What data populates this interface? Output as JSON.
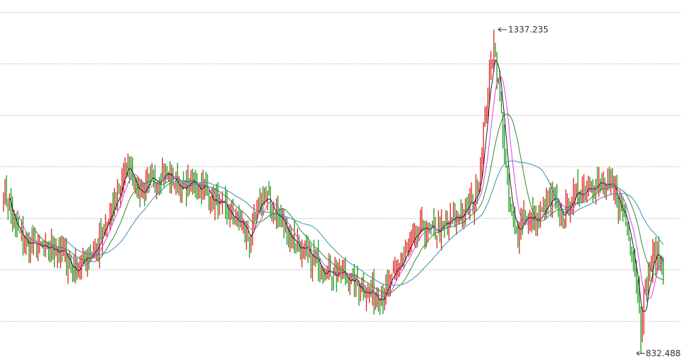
{
  "chart_data": {
    "type": "candlestick",
    "grid": "horizontal dotted",
    "legend": "none",
    "ylim": [
      800,
      1400
    ],
    "annotations": {
      "high": "1337.235",
      "low": "832.488"
    },
    "colors": {
      "up": "#e02020",
      "down": "#1a9a1a",
      "ma_black": "#222222",
      "ma_magenta": "#e040e0",
      "ma_green": "#2e8b2e",
      "ma_blue": "#3a8fb0"
    },
    "anchors": [
      [
        0,
        1095
      ],
      [
        8,
        1025
      ],
      [
        15,
        1005
      ],
      [
        22,
        1000
      ],
      [
        28,
        990
      ],
      [
        33,
        1000
      ],
      [
        38,
        990
      ],
      [
        43,
        980
      ],
      [
        47,
        960
      ],
      [
        52,
        975
      ],
      [
        58,
        990
      ],
      [
        63,
        1000
      ],
      [
        68,
        1030
      ],
      [
        72,
        1050
      ],
      [
        76,
        1080
      ],
      [
        80,
        1110
      ],
      [
        84,
        1130
      ],
      [
        88,
        1090
      ],
      [
        94,
        1085
      ],
      [
        100,
        1100
      ],
      [
        105,
        1115
      ],
      [
        110,
        1110
      ],
      [
        115,
        1100
      ],
      [
        120,
        1085
      ],
      [
        125,
        1100
      ],
      [
        130,
        1095
      ],
      [
        135,
        1090
      ],
      [
        140,
        1070
      ],
      [
        145,
        1060
      ],
      [
        150,
        1050
      ],
      [
        155,
        1040
      ],
      [
        160,
        1030
      ],
      [
        164,
        1010
      ],
      [
        168,
        1040
      ],
      [
        172,
        1075
      ],
      [
        176,
        1070
      ],
      [
        180,
        1055
      ],
      [
        185,
        1040
      ],
      [
        190,
        1020
      ],
      [
        195,
        1005
      ],
      [
        200,
        990
      ],
      [
        205,
        980
      ],
      [
        210,
        975
      ],
      [
        215,
        965
      ],
      [
        220,
        960
      ],
      [
        225,
        955
      ],
      [
        230,
        950
      ],
      [
        235,
        940
      ],
      [
        240,
        935
      ],
      [
        245,
        925
      ],
      [
        250,
        925
      ],
      [
        255,
        930
      ],
      [
        260,
        950
      ],
      [
        265,
        975
      ],
      [
        270,
        995
      ],
      [
        275,
        1010
      ],
      [
        280,
        1030
      ],
      [
        285,
        1020
      ],
      [
        290,
        1025
      ],
      [
        295,
        1030
      ],
      [
        300,
        1040
      ],
      [
        305,
        1050
      ],
      [
        310,
        1060
      ],
      [
        315,
        1080
      ],
      [
        318,
        1120
      ],
      [
        321,
        1200
      ],
      [
        324,
        1260
      ],
      [
        327,
        1320
      ],
      [
        330,
        1250
      ],
      [
        333,
        1180
      ],
      [
        337,
        1060
      ],
      [
        342,
        1020
      ],
      [
        347,
        1050
      ],
      [
        352,
        1040
      ],
      [
        357,
        1040
      ],
      [
        362,
        1060
      ],
      [
        367,
        1070
      ],
      [
        372,
        1045
      ],
      [
        377,
        1065
      ],
      [
        382,
        1080
      ],
      [
        387,
        1090
      ],
      [
        392,
        1100
      ],
      [
        397,
        1095
      ],
      [
        402,
        1090
      ],
      [
        407,
        1085
      ],
      [
        411,
        1060
      ],
      [
        415,
        1040
      ],
      [
        419,
        1000
      ],
      [
        422,
        940
      ],
      [
        425,
        890
      ],
      [
        428,
        920
      ],
      [
        431,
        960
      ],
      [
        434,
        990
      ],
      [
        437,
        980
      ],
      [
        440,
        970
      ]
    ]
  }
}
